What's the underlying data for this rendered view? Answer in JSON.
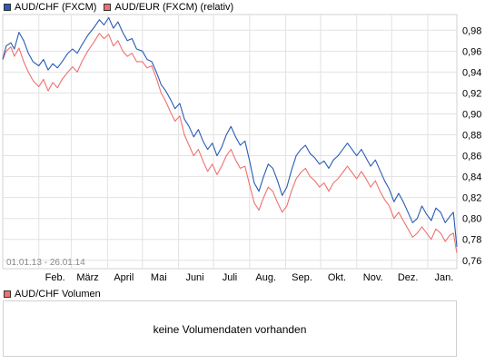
{
  "legend": [
    {
      "label": "AUD/CHF (FXCM)",
      "color": "#2a5bb5"
    },
    {
      "label": "AUD/EUR (FXCM) (relativ)",
      "color": "#f07070"
    }
  ],
  "date_range": "01.01.13 - 26.01.14",
  "volume": {
    "legend_label": "AUD/CHF Volumen",
    "legend_color": "#f07070",
    "message": "keine Volumendaten vorhanden"
  },
  "chart_data": {
    "type": "line",
    "x_tick_labels": [
      "Feb.",
      "März",
      "April",
      "Mai",
      "Juni",
      "Juli",
      "Aug.",
      "Sep.",
      "Okt.",
      "Nov.",
      "Dez.",
      "Jan."
    ],
    "y_tick_labels": [
      "0,76",
      "0,78",
      "0,80",
      "0,82",
      "0,84",
      "0,86",
      "0,88",
      "0,90",
      "0,92",
      "0,94",
      "0,96",
      "0,98"
    ],
    "y_ticks": [
      0.76,
      0.78,
      0.8,
      0.82,
      0.84,
      0.86,
      0.88,
      0.9,
      0.92,
      0.94,
      0.96,
      0.98
    ],
    "ylim": [
      0.752,
      0.995
    ],
    "xlim": [
      "2013-01-01",
      "2014-01-26"
    ],
    "grid": true,
    "legend_position": "top-left",
    "series": [
      {
        "name": "AUD/CHF (FXCM)",
        "color": "#2a5bb5",
        "points": [
          [
            "2013-01-01",
            0.952
          ],
          [
            "2013-01-04",
            0.965
          ],
          [
            "2013-01-08",
            0.968
          ],
          [
            "2013-01-11",
            0.962
          ],
          [
            "2013-01-15",
            0.978
          ],
          [
            "2013-01-19",
            0.97
          ],
          [
            "2013-01-23",
            0.958
          ],
          [
            "2013-01-27",
            0.95
          ],
          [
            "2013-02-01",
            0.946
          ],
          [
            "2013-02-05",
            0.952
          ],
          [
            "2013-02-09",
            0.942
          ],
          [
            "2013-02-13",
            0.948
          ],
          [
            "2013-02-17",
            0.944
          ],
          [
            "2013-02-21",
            0.95
          ],
          [
            "2013-02-26",
            0.958
          ],
          [
            "2013-03-02",
            0.962
          ],
          [
            "2013-03-06",
            0.958
          ],
          [
            "2013-03-10",
            0.966
          ],
          [
            "2013-03-15",
            0.975
          ],
          [
            "2013-03-20",
            0.982
          ],
          [
            "2013-03-25",
            0.99
          ],
          [
            "2013-03-29",
            0.985
          ],
          [
            "2013-04-02",
            0.992
          ],
          [
            "2013-04-06",
            0.982
          ],
          [
            "2013-04-10",
            0.988
          ],
          [
            "2013-04-14",
            0.978
          ],
          [
            "2013-04-18",
            0.97
          ],
          [
            "2013-04-22",
            0.972
          ],
          [
            "2013-04-26",
            0.962
          ],
          [
            "2013-05-01",
            0.96
          ],
          [
            "2013-05-05",
            0.952
          ],
          [
            "2013-05-09",
            0.95
          ],
          [
            "2013-05-13",
            0.94
          ],
          [
            "2013-05-17",
            0.928
          ],
          [
            "2013-05-21",
            0.922
          ],
          [
            "2013-05-25",
            0.914
          ],
          [
            "2013-05-29",
            0.905
          ],
          [
            "2013-06-02",
            0.91
          ],
          [
            "2013-06-06",
            0.895
          ],
          [
            "2013-06-10",
            0.888
          ],
          [
            "2013-06-14",
            0.878
          ],
          [
            "2013-06-18",
            0.885
          ],
          [
            "2013-06-22",
            0.874
          ],
          [
            "2013-06-26",
            0.866
          ],
          [
            "2013-06-30",
            0.872
          ],
          [
            "2013-07-04",
            0.86
          ],
          [
            "2013-07-08",
            0.868
          ],
          [
            "2013-07-12",
            0.88
          ],
          [
            "2013-07-16",
            0.888
          ],
          [
            "2013-07-20",
            0.878
          ],
          [
            "2013-07-24",
            0.87
          ],
          [
            "2013-07-28",
            0.874
          ],
          [
            "2013-08-01",
            0.855
          ],
          [
            "2013-08-05",
            0.834
          ],
          [
            "2013-08-09",
            0.826
          ],
          [
            "2013-08-13",
            0.84
          ],
          [
            "2013-08-17",
            0.852
          ],
          [
            "2013-08-21",
            0.848
          ],
          [
            "2013-08-25",
            0.836
          ],
          [
            "2013-08-29",
            0.822
          ],
          [
            "2013-09-02",
            0.83
          ],
          [
            "2013-09-06",
            0.846
          ],
          [
            "2013-09-10",
            0.86
          ],
          [
            "2013-09-14",
            0.866
          ],
          [
            "2013-09-18",
            0.87
          ],
          [
            "2013-09-22",
            0.862
          ],
          [
            "2013-09-26",
            0.858
          ],
          [
            "2013-09-30",
            0.852
          ],
          [
            "2013-10-04",
            0.855
          ],
          [
            "2013-10-08",
            0.848
          ],
          [
            "2013-10-12",
            0.856
          ],
          [
            "2013-10-16",
            0.86
          ],
          [
            "2013-10-20",
            0.866
          ],
          [
            "2013-10-24",
            0.872
          ],
          [
            "2013-10-28",
            0.866
          ],
          [
            "2013-11-01",
            0.86
          ],
          [
            "2013-11-05",
            0.866
          ],
          [
            "2013-11-09",
            0.858
          ],
          [
            "2013-11-13",
            0.85
          ],
          [
            "2013-11-17",
            0.856
          ],
          [
            "2013-11-21",
            0.846
          ],
          [
            "2013-11-25",
            0.836
          ],
          [
            "2013-11-29",
            0.828
          ],
          [
            "2013-12-03",
            0.816
          ],
          [
            "2013-12-07",
            0.824
          ],
          [
            "2013-12-11",
            0.816
          ],
          [
            "2013-12-15",
            0.806
          ],
          [
            "2013-12-19",
            0.796
          ],
          [
            "2013-12-23",
            0.8
          ],
          [
            "2013-12-27",
            0.812
          ],
          [
            "2013-12-31",
            0.804
          ],
          [
            "2014-01-04",
            0.798
          ],
          [
            "2014-01-08",
            0.81
          ],
          [
            "2014-01-12",
            0.806
          ],
          [
            "2014-01-16",
            0.796
          ],
          [
            "2014-01-20",
            0.802
          ],
          [
            "2014-01-23",
            0.806
          ],
          [
            "2014-01-26",
            0.773
          ]
        ]
      },
      {
        "name": "AUD/EUR (FXCM) (relativ)",
        "color": "#f07070",
        "points": [
          [
            "2013-01-01",
            0.952
          ],
          [
            "2013-01-04",
            0.96
          ],
          [
            "2013-01-08",
            0.964
          ],
          [
            "2013-01-11",
            0.955
          ],
          [
            "2013-01-15",
            0.963
          ],
          [
            "2013-01-19",
            0.95
          ],
          [
            "2013-01-23",
            0.94
          ],
          [
            "2013-01-27",
            0.932
          ],
          [
            "2013-02-01",
            0.926
          ],
          [
            "2013-02-05",
            0.933
          ],
          [
            "2013-02-09",
            0.922
          ],
          [
            "2013-02-13",
            0.93
          ],
          [
            "2013-02-17",
            0.925
          ],
          [
            "2013-02-21",
            0.933
          ],
          [
            "2013-02-26",
            0.94
          ],
          [
            "2013-03-02",
            0.945
          ],
          [
            "2013-03-06",
            0.94
          ],
          [
            "2013-03-10",
            0.95
          ],
          [
            "2013-03-15",
            0.96
          ],
          [
            "2013-03-20",
            0.968
          ],
          [
            "2013-03-25",
            0.977
          ],
          [
            "2013-03-29",
            0.972
          ],
          [
            "2013-04-02",
            0.976
          ],
          [
            "2013-04-06",
            0.965
          ],
          [
            "2013-04-10",
            0.97
          ],
          [
            "2013-04-14",
            0.96
          ],
          [
            "2013-04-18",
            0.955
          ],
          [
            "2013-04-22",
            0.958
          ],
          [
            "2013-04-26",
            0.95
          ],
          [
            "2013-05-01",
            0.95
          ],
          [
            "2013-05-05",
            0.944
          ],
          [
            "2013-05-09",
            0.946
          ],
          [
            "2013-05-13",
            0.934
          ],
          [
            "2013-05-17",
            0.92
          ],
          [
            "2013-05-21",
            0.912
          ],
          [
            "2013-05-25",
            0.902
          ],
          [
            "2013-05-29",
            0.893
          ],
          [
            "2013-06-02",
            0.898
          ],
          [
            "2013-06-06",
            0.88
          ],
          [
            "2013-06-10",
            0.87
          ],
          [
            "2013-06-14",
            0.86
          ],
          [
            "2013-06-18",
            0.866
          ],
          [
            "2013-06-22",
            0.855
          ],
          [
            "2013-06-26",
            0.845
          ],
          [
            "2013-06-30",
            0.852
          ],
          [
            "2013-07-04",
            0.842
          ],
          [
            "2013-07-08",
            0.85
          ],
          [
            "2013-07-12",
            0.86
          ],
          [
            "2013-07-16",
            0.866
          ],
          [
            "2013-07-20",
            0.856
          ],
          [
            "2013-07-24",
            0.848
          ],
          [
            "2013-07-28",
            0.85
          ],
          [
            "2013-08-01",
            0.832
          ],
          [
            "2013-08-05",
            0.815
          ],
          [
            "2013-08-09",
            0.808
          ],
          [
            "2013-08-13",
            0.82
          ],
          [
            "2013-08-17",
            0.83
          ],
          [
            "2013-08-21",
            0.826
          ],
          [
            "2013-08-25",
            0.815
          ],
          [
            "2013-08-29",
            0.806
          ],
          [
            "2013-09-02",
            0.812
          ],
          [
            "2013-09-06",
            0.826
          ],
          [
            "2013-09-10",
            0.838
          ],
          [
            "2013-09-14",
            0.844
          ],
          [
            "2013-09-18",
            0.848
          ],
          [
            "2013-09-22",
            0.84
          ],
          [
            "2013-09-26",
            0.836
          ],
          [
            "2013-09-30",
            0.83
          ],
          [
            "2013-10-04",
            0.834
          ],
          [
            "2013-10-08",
            0.826
          ],
          [
            "2013-10-12",
            0.834
          ],
          [
            "2013-10-16",
            0.838
          ],
          [
            "2013-10-20",
            0.844
          ],
          [
            "2013-10-24",
            0.85
          ],
          [
            "2013-10-28",
            0.844
          ],
          [
            "2013-11-01",
            0.838
          ],
          [
            "2013-11-05",
            0.845
          ],
          [
            "2013-11-09",
            0.838
          ],
          [
            "2013-11-13",
            0.83
          ],
          [
            "2013-11-17",
            0.836
          ],
          [
            "2013-11-21",
            0.826
          ],
          [
            "2013-11-25",
            0.818
          ],
          [
            "2013-11-29",
            0.812
          ],
          [
            "2013-12-03",
            0.8
          ],
          [
            "2013-12-07",
            0.806
          ],
          [
            "2013-12-11",
            0.798
          ],
          [
            "2013-12-15",
            0.79
          ],
          [
            "2013-12-19",
            0.782
          ],
          [
            "2013-12-23",
            0.786
          ],
          [
            "2013-12-27",
            0.792
          ],
          [
            "2013-12-31",
            0.786
          ],
          [
            "2014-01-04",
            0.78
          ],
          [
            "2014-01-08",
            0.79
          ],
          [
            "2014-01-12",
            0.786
          ],
          [
            "2014-01-16",
            0.778
          ],
          [
            "2014-01-20",
            0.784
          ],
          [
            "2014-01-23",
            0.786
          ],
          [
            "2014-01-26",
            0.767
          ]
        ]
      }
    ]
  }
}
